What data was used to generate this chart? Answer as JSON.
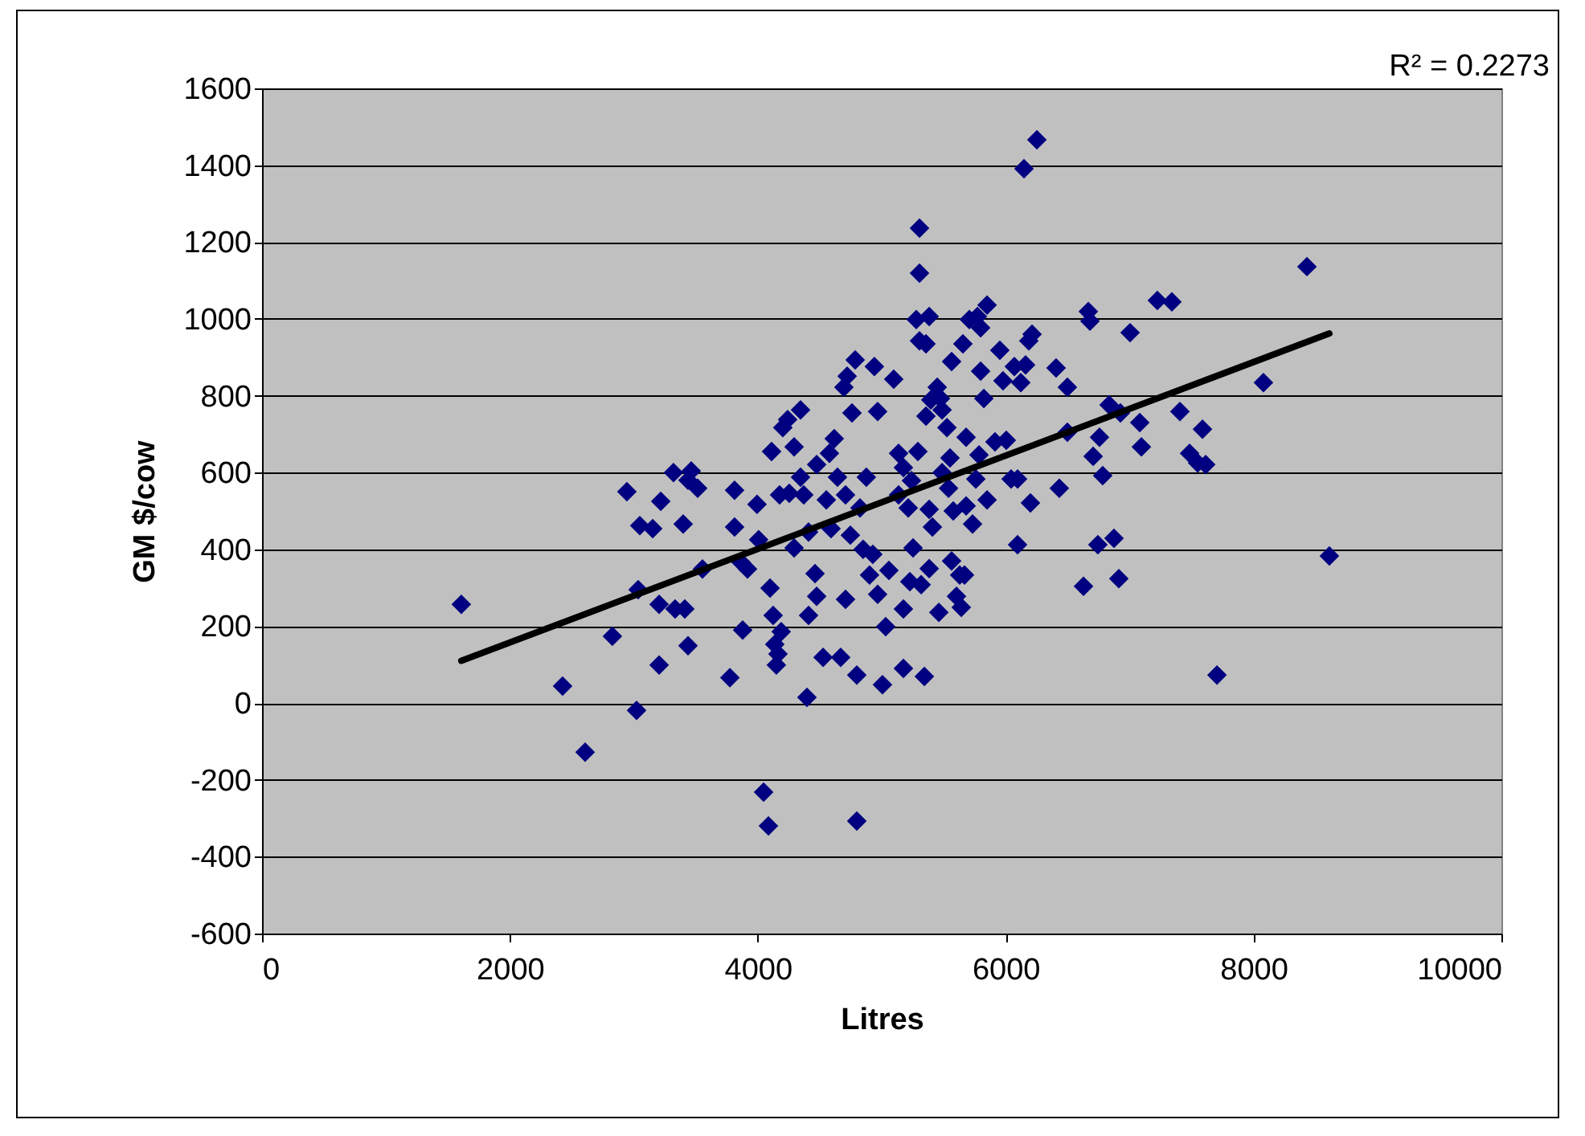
{
  "chart_data": {
    "type": "scatter",
    "xlabel": "Litres",
    "ylabel": "GM $/cow",
    "xlim": [
      0,
      10000
    ],
    "xticks": [
      0,
      2000,
      4000,
      6000,
      8000,
      10000
    ],
    "ylim": [
      -600,
      1600
    ],
    "yticks": [
      -600,
      -400,
      -200,
      0,
      200,
      400,
      600,
      800,
      1000,
      1200,
      1400,
      1600
    ],
    "grid": "y",
    "annotations": [
      "R² = 0.2273"
    ],
    "series": [
      {
        "marker": "diamond",
        "color": "#000080",
        "x": [
          1608,
          2425,
          2607,
          2827,
          2944,
          3022,
          3035,
          3048,
          3152,
          3204,
          3217,
          3204,
          3320,
          3333,
          3398,
          3411,
          3437,
          3463,
          3515,
          3437,
          3554,
          3775,
          3813,
          3813,
          3865,
          3917,
          3878,
          3994,
          4007,
          4047,
          4086,
          4099,
          4111,
          4124,
          4137,
          4150,
          4163,
          4189,
          4176,
          4202,
          4241,
          4345,
          4254,
          4293,
          4293,
          4345,
          4371,
          4397,
          4410,
          4410,
          4462,
          4475,
          4475,
          4527,
          4553,
          4578,
          4591,
          4617,
          4669,
          4643,
          4695,
          4721,
          4708,
          4708,
          4747,
          4760,
          4786,
          4799,
          4799,
          4825,
          4850,
          4876,
          4902,
          4928,
          4941,
          4967,
          4967,
          5006,
          5032,
          5058,
          5097,
          5136,
          5136,
          5175,
          5175,
          5175,
          5214,
          5227,
          5240,
          5253,
          5279,
          5292,
          5305,
          5305,
          5305,
          5318,
          5344,
          5357,
          5357,
          5383,
          5383,
          5383,
          5396,
          5409,
          5448,
          5461,
          5474,
          5487,
          5487,
          5526,
          5539,
          5551,
          5564,
          5564,
          5577,
          5603,
          5629,
          5642,
          5655,
          5668,
          5681,
          5681,
          5707,
          5733,
          5759,
          5772,
          5785,
          5798,
          5798,
          5824,
          5850,
          5850,
          5914,
          5953,
          5979,
          6005,
          6044,
          6070,
          6096,
          6096,
          6122,
          6148,
          6161,
          6187,
          6200,
          6213,
          6252,
          6407,
          6433,
          6498,
          6498,
          6628,
          6667,
          6680,
          6706,
          6744,
          6757,
          6783,
          6835,
          6874,
          6913,
          6926,
          7004,
          7082,
          7095,
          7224,
          7341,
          7406,
          7484,
          7549,
          7588,
          7614,
          7705,
          8080,
          8431,
          8612
        ],
        "values": [
          257,
          44,
          -128,
          174,
          550,
          -19,
          295,
          462,
          454,
          99,
          525,
          257,
          600,
          245,
          466,
          245,
          580,
          604,
          559,
          149,
          349,
          66,
          458,
          554,
          366,
          349,
          190,
          517,
          425,
          -232,
          -320,
          299,
          655,
          228,
          153,
          99,
          128,
          186,
          542,
          717,
          738,
          763,
          546,
          667,
          404,
          588,
          542,
          15,
          228,
          445,
          337,
          278,
          621,
          119,
          529,
          650,
          454,
          688,
          119,
          588,
          822,
          851,
          270,
          542,
          437,
          755,
          893,
          73,
          -307,
          508,
          400,
          588,
          333,
          387,
          876,
          283,
          759,
          48,
          199,
          345,
          843,
          650,
          542,
          613,
          245,
          90,
          508,
          316,
          579,
          404,
          998,
          655,
          1236,
          1119,
          943,
          308,
          69,
          747,
          935,
          1006,
          350,
          504,
          789,
          458,
          822,
          236,
          793,
          600,
          763,
          717,
          559,
          638,
          889,
          370,
          500,
          278,
          333,
          249,
          935,
          333,
          692,
          513,
          998,
          466,
          583,
          1006,
          646,
          864,
          977,
          793,
          1036,
          529,
          680,
          918,
          839,
          684,
          583,
          876,
          412,
          583,
          834,
          1391,
          880,
          943,
          521,
          960,
          1466,
          872,
          559,
          705,
          822,
          304,
          1019,
          994,
          642,
          412,
          692,
          592,
          776,
          429,
          324,
          755,
          964,
          730,
          667,
          1048,
          1044,
          759,
          650,
          625,
          713,
          621,
          73,
          834,
          1136,
          383
        ]
      },
      {
        "type": "line",
        "color": "#000000",
        "x": [
          1608,
          8612
        ],
        "values": [
          110,
          962
        ]
      }
    ]
  }
}
